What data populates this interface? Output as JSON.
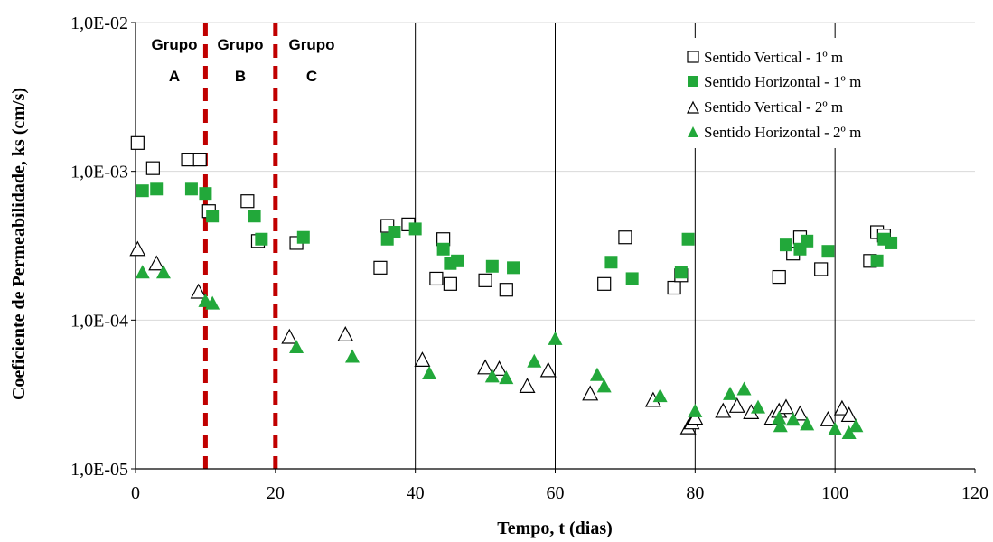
{
  "chart_data": {
    "type": "scatter",
    "xlabel": "Tempo, t (dias)",
    "ylabel": "Coeficiente de Permeabilidade, ks (cm/s)",
    "xlim": [
      0,
      120
    ],
    "ylim": [
      1e-05,
      0.01
    ],
    "yscale": "log",
    "x_ticks": [
      "0",
      "20",
      "40",
      "60",
      "80",
      "100",
      "120"
    ],
    "y_ticks": [
      "1,0E-05",
      "1,0E-04",
      "1,0E-03",
      "1,0E-02"
    ],
    "grid": "horizontal major lines; vertical lines at x = 40, 60, 80, 100",
    "legend_position": "top-right",
    "group_dividers": [
      {
        "x": 10,
        "style": "dashed",
        "color": "#c00000"
      },
      {
        "x": 20,
        "style": "dashed",
        "color": "#c00000"
      }
    ],
    "group_labels": [
      {
        "line1": "Grupo",
        "line2": "A"
      },
      {
        "line1": "Grupo",
        "line2": "B"
      },
      {
        "line1": "Grupo",
        "line2": "C"
      }
    ],
    "series": [
      {
        "name": "Sentido Vertical - 1º m",
        "marker": "square-open",
        "color": "#000000",
        "points": [
          [
            0.3,
            0.00155
          ],
          [
            2.5,
            0.00105
          ],
          [
            7.5,
            0.0012
          ],
          [
            9.2,
            0.0012
          ],
          [
            10.5,
            0.00054
          ],
          [
            16,
            0.00063
          ],
          [
            17.5,
            0.00034
          ],
          [
            23,
            0.00033
          ],
          [
            35,
            0.000225
          ],
          [
            36,
            0.00043
          ],
          [
            39,
            0.00044
          ],
          [
            43,
            0.00019
          ],
          [
            44,
            0.00035
          ],
          [
            45,
            0.000175
          ],
          [
            50,
            0.000185
          ],
          [
            53,
            0.00016
          ],
          [
            67,
            0.000175
          ],
          [
            70,
            0.00036
          ],
          [
            77,
            0.000165
          ],
          [
            78,
            0.0002
          ],
          [
            92,
            0.000195
          ],
          [
            94,
            0.00028
          ],
          [
            95,
            0.00036
          ],
          [
            98,
            0.00022
          ],
          [
            105,
            0.00025
          ],
          [
            106,
            0.00039
          ],
          [
            107,
            0.00037
          ]
        ]
      },
      {
        "name": "Sentido Horizontal - 1º m",
        "marker": "square-filled",
        "color": "#22a83a",
        "points": [
          [
            1,
            0.00074
          ],
          [
            3,
            0.00076
          ],
          [
            8,
            0.00076
          ],
          [
            10,
            0.00071
          ],
          [
            11,
            0.0005
          ],
          [
            17,
            0.0005
          ],
          [
            18,
            0.00035
          ],
          [
            24,
            0.00036
          ],
          [
            36,
            0.00035
          ],
          [
            37,
            0.00039
          ],
          [
            40,
            0.00041
          ],
          [
            44,
            0.0003
          ],
          [
            45,
            0.00024
          ],
          [
            46,
            0.00025
          ],
          [
            51,
            0.00023
          ],
          [
            54,
            0.000225
          ],
          [
            68,
            0.000245
          ],
          [
            71,
            0.00019
          ],
          [
            78,
            0.00021
          ],
          [
            79,
            0.00035
          ],
          [
            93,
            0.00032
          ],
          [
            95,
            0.0003
          ],
          [
            96,
            0.00034
          ],
          [
            99,
            0.00029
          ],
          [
            106,
            0.00025
          ],
          [
            107,
            0.00035
          ],
          [
            108,
            0.00033
          ]
        ]
      },
      {
        "name": "Sentido Vertical - 2º m",
        "marker": "triangle-open",
        "color": "#000000",
        "points": [
          [
            0.3,
            0.0003
          ],
          [
            3,
            0.00024
          ],
          [
            9,
            0.000155
          ],
          [
            22,
            7.7e-05
          ],
          [
            30,
            8e-05
          ],
          [
            41,
            5.4e-05
          ],
          [
            50,
            4.8e-05
          ],
          [
            52,
            4.7e-05
          ],
          [
            56,
            3.6e-05
          ],
          [
            59,
            4.6e-05
          ],
          [
            65,
            3.2e-05
          ],
          [
            74,
            2.9e-05
          ],
          [
            79,
            1.9e-05
          ],
          [
            79.5,
            2.05e-05
          ],
          [
            80,
            2.2e-05
          ],
          [
            84,
            2.45e-05
          ],
          [
            86,
            2.65e-05
          ],
          [
            88,
            2.4e-05
          ],
          [
            91,
            2.2e-05
          ],
          [
            92,
            2.45e-05
          ],
          [
            93,
            2.6e-05
          ],
          [
            95,
            2.35e-05
          ],
          [
            99,
            2.15e-05
          ],
          [
            101,
            2.55e-05
          ],
          [
            102,
            2.3e-05
          ]
        ]
      },
      {
        "name": "Sentido Horizontal - 2º m",
        "marker": "triangle-filled",
        "color": "#22a83a",
        "points": [
          [
            1,
            0.00021
          ],
          [
            4,
            0.00021
          ],
          [
            10,
            0.000135
          ],
          [
            11,
            0.00013
          ],
          [
            23,
            6.6e-05
          ],
          [
            31,
            5.7e-05
          ],
          [
            42,
            4.4e-05
          ],
          [
            51,
            4.2e-05
          ],
          [
            53,
            4.1e-05
          ],
          [
            57,
            5.3e-05
          ],
          [
            60,
            7.5e-05
          ],
          [
            66,
            4.3e-05
          ],
          [
            67,
            3.6e-05
          ],
          [
            75,
            3.1e-05
          ],
          [
            80,
            2.45e-05
          ],
          [
            85,
            3.2e-05
          ],
          [
            87,
            3.45e-05
          ],
          [
            89,
            2.6e-05
          ],
          [
            92,
            2.2e-05
          ],
          [
            92.2,
            1.95e-05
          ],
          [
            94,
            2.15e-05
          ],
          [
            96,
            2e-05
          ],
          [
            100,
            1.85e-05
          ],
          [
            102,
            1.75e-05
          ],
          [
            103,
            1.95e-05
          ]
        ]
      }
    ]
  }
}
